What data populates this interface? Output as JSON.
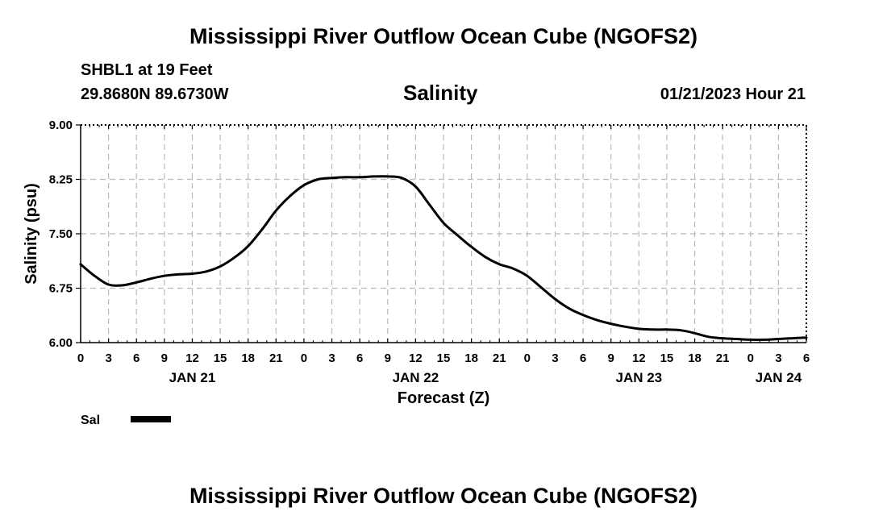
{
  "header": {
    "main_title": "Mississippi River Outflow Ocean Cube (NGOFS2)",
    "station": "SHBL1 at 19 Feet",
    "coordinates": "29.8680N  89.6730W",
    "variable": "Salinity",
    "datetime": "01/21/2023 Hour 21"
  },
  "footer": {
    "repeated_title": "Mississippi River Outflow Ocean Cube (NGOFS2)"
  },
  "chart_data": {
    "type": "line",
    "title": "Salinity",
    "xlabel": "Forecast (Z)",
    "ylabel": "Salinity (psu)",
    "ylim": [
      6.0,
      9.0
    ],
    "yticks": [
      "6.00",
      "6.75",
      "7.50",
      "8.25",
      "9.00"
    ],
    "xlim": [
      0,
      78
    ],
    "xtick_values": [
      0,
      3,
      6,
      9,
      12,
      15,
      18,
      21,
      24,
      27,
      30,
      33,
      36,
      39,
      42,
      45,
      48,
      51,
      54,
      57,
      60,
      63,
      66,
      69,
      72,
      75,
      78
    ],
    "xtick_labels": [
      "0",
      "3",
      "6",
      "9",
      "12",
      "15",
      "18",
      "21",
      "0",
      "3",
      "6",
      "9",
      "12",
      "15",
      "18",
      "21",
      "0",
      "3",
      "6",
      "9",
      "12",
      "15",
      "18",
      "21",
      "0",
      "3",
      "6"
    ],
    "date_labels": [
      {
        "label": "JAN 21",
        "x": 12
      },
      {
        "label": "JAN 22",
        "x": 36
      },
      {
        "label": "JAN 23",
        "x": 60
      },
      {
        "label": "JAN 24",
        "x": 75
      }
    ],
    "grid": true,
    "legend": {
      "label": "Sal",
      "placement": "bottom-left"
    },
    "series": [
      {
        "name": "Sal",
        "color": "#000000",
        "x": [
          0,
          1.5,
          3,
          4.5,
          6,
          7.5,
          9,
          10.5,
          12,
          13.5,
          15,
          16.5,
          18,
          19.5,
          21,
          22.5,
          24,
          25.5,
          27,
          28.5,
          30,
          31.5,
          33,
          34.5,
          36,
          37.5,
          39,
          40.5,
          42,
          43.5,
          45,
          46.5,
          48,
          49.5,
          51,
          52.5,
          54,
          55.5,
          57,
          58.5,
          60,
          61.5,
          63,
          64.5,
          66,
          67.5,
          69,
          70.5,
          72,
          73.5,
          75,
          76.5,
          78
        ],
        "y": [
          7.08,
          6.92,
          6.8,
          6.79,
          6.83,
          6.88,
          6.92,
          6.94,
          6.95,
          6.98,
          7.05,
          7.17,
          7.33,
          7.56,
          7.82,
          8.02,
          8.17,
          8.25,
          8.27,
          8.28,
          8.28,
          8.29,
          8.29,
          8.27,
          8.15,
          7.9,
          7.65,
          7.48,
          7.32,
          7.18,
          7.08,
          7.02,
          6.92,
          6.76,
          6.6,
          6.47,
          6.38,
          6.31,
          6.26,
          6.22,
          6.19,
          6.18,
          6.18,
          6.17,
          6.13,
          6.08,
          6.06,
          6.05,
          6.04,
          6.04,
          6.05,
          6.06,
          6.07
        ]
      }
    ]
  }
}
